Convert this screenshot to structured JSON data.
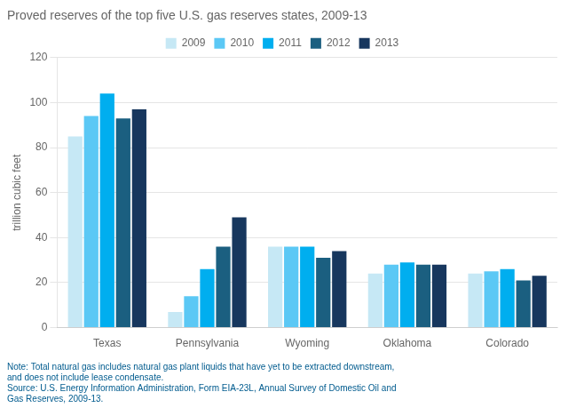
{
  "chart_data": {
    "type": "bar",
    "title": "Proved reserves of the top five U.S. gas reserves states, 2009-13",
    "ylabel": "trillion cubic feet",
    "categories": [
      "Texas",
      "Pennsylvania",
      "Wyoming",
      "Oklahoma",
      "Colorado"
    ],
    "series": [
      {
        "name": "2009",
        "color": "#c6e8f5",
        "values": [
          85,
          7,
          36,
          24,
          24
        ]
      },
      {
        "name": "2010",
        "color": "#5bc8f5",
        "values": [
          94,
          14,
          36,
          28,
          25
        ]
      },
      {
        "name": "2011",
        "color": "#00aeef",
        "values": [
          104,
          26,
          36,
          29,
          26
        ]
      },
      {
        "name": "2012",
        "color": "#1b5f80",
        "values": [
          93,
          36,
          31,
          28,
          21
        ]
      },
      {
        "name": "2013",
        "color": "#17375e",
        "values": [
          97,
          49,
          34,
          28,
          23
        ]
      }
    ],
    "ylim": [
      0,
      120
    ],
    "yticks": [
      0,
      20,
      40,
      60,
      80,
      100,
      120
    ],
    "grid": true,
    "legend": "top",
    "annotations": [
      "Note: Total natural gas includes natural gas plant liquids that have yet to be extracted downstream,",
      "and does not include lease condensate.",
      "Source: U.S. Energy Information Administration, Form EIA-23L, Annual Survey of Domestic Oil and",
      "Gas Reserves, 2009-13."
    ]
  }
}
